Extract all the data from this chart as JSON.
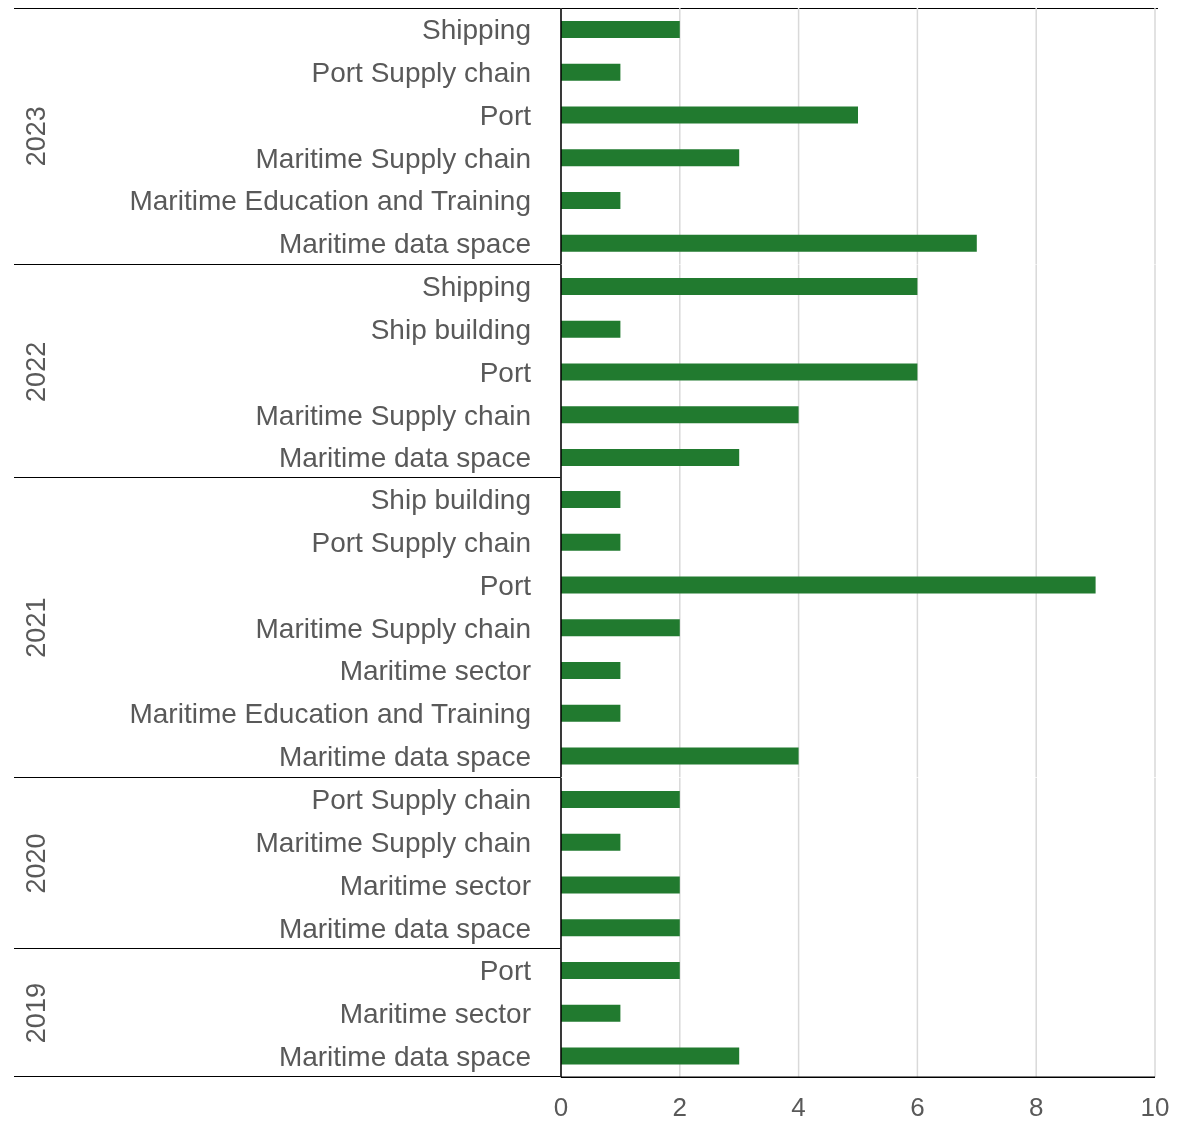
{
  "chart_data": [
    {
      "type": "bar",
      "orientation": "horizontal",
      "ylabel": "2023",
      "categories": [
        "Shipping",
        "Port Supply chain",
        "Port",
        "Maritime Supply chain",
        "Maritime Education and Training",
        "Maritime data space"
      ],
      "values": [
        2,
        1,
        5,
        3,
        1,
        7
      ],
      "color": "#217a2f",
      "xlim": [
        0,
        10
      ],
      "xticks": [
        0,
        2,
        4,
        6,
        8,
        10
      ],
      "grid": "x",
      "tick_labels": "y"
    },
    {
      "type": "bar",
      "orientation": "horizontal",
      "ylabel": "2022",
      "categories": [
        "Shipping",
        "Ship building",
        "Port",
        "Maritime Supply chain",
        "Maritime data space"
      ],
      "values": [
        6,
        1,
        6,
        4,
        3
      ],
      "color": "#217a2f",
      "xlim": [
        0,
        10
      ],
      "xticks": [
        0,
        2,
        4,
        6,
        8,
        10
      ],
      "grid": "x",
      "tick_labels": "y"
    },
    {
      "type": "bar",
      "orientation": "horizontal",
      "ylabel": "2021",
      "categories": [
        "Ship building",
        "Port Supply chain",
        "Port",
        "Maritime Supply chain",
        "Maritime sector",
        "Maritime Education and Training",
        "Maritime data space"
      ],
      "values": [
        1,
        1,
        9,
        2,
        1,
        1,
        4
      ],
      "color": "#217a2f",
      "xlim": [
        0,
        10
      ],
      "xticks": [
        0,
        2,
        4,
        6,
        8,
        10
      ],
      "grid": "x",
      "tick_labels": "y"
    },
    {
      "type": "bar",
      "orientation": "horizontal",
      "ylabel": "2020",
      "categories": [
        "Port Supply chain",
        "Maritime Supply chain",
        "Maritime sector",
        "Maritime data space"
      ],
      "values": [
        2,
        1,
        2,
        2
      ],
      "color": "#217a2f",
      "xlim": [
        0,
        10
      ],
      "xticks": [
        0,
        2,
        4,
        6,
        8,
        10
      ],
      "grid": "x",
      "tick_labels": "y"
    },
    {
      "type": "bar",
      "orientation": "horizontal",
      "ylabel": "2019",
      "categories": [
        "Port",
        "Maritime sector",
        "Maritime data space"
      ],
      "values": [
        2,
        1,
        3
      ],
      "color": "#217a2f",
      "xlim": [
        0,
        10
      ],
      "xticks": [
        0,
        2,
        4,
        6,
        8,
        10
      ],
      "grid": "x"
    }
  ]
}
